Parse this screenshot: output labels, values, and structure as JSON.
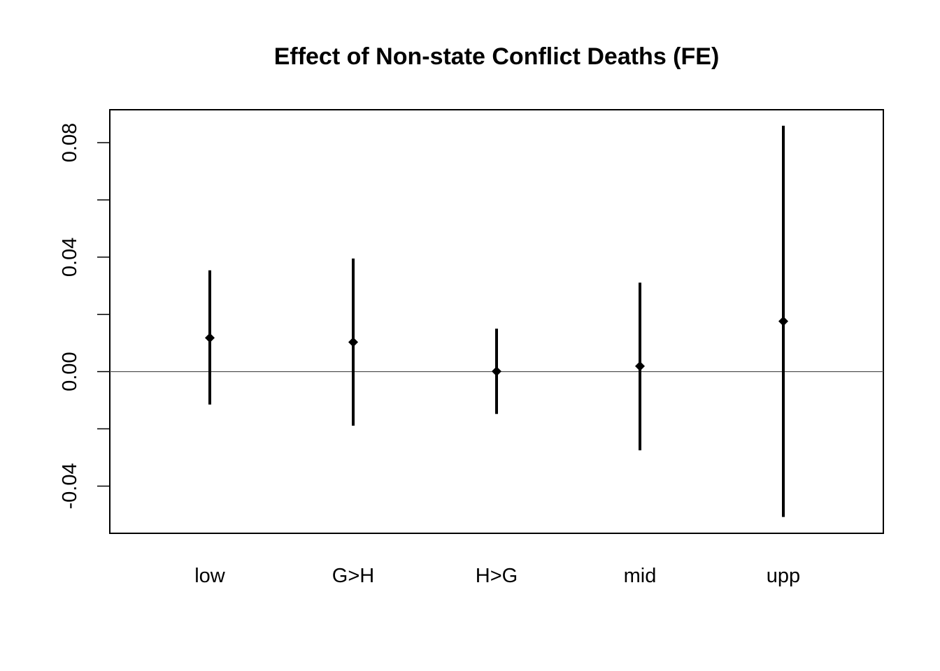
{
  "chart_data": {
    "type": "scatter",
    "title": "Effect of Non-state Conflict Deaths (FE)",
    "xlabel": "",
    "ylabel": "",
    "categories": [
      "low",
      "G>H",
      "H>G",
      "mid",
      "upp"
    ],
    "series": [
      {
        "estimates": [
          0.0118,
          0.0103,
          0.0001,
          0.0019,
          0.0176
        ],
        "lower": [
          -0.0115,
          -0.0189,
          -0.0148,
          -0.0275,
          -0.0508
        ],
        "upper": [
          0.0354,
          0.0395,
          0.015,
          0.0311,
          0.0859
        ]
      }
    ],
    "yticks": [
      -0.04,
      0.0,
      0.04,
      0.08
    ],
    "ytick_labels": [
      "-0.04",
      "0.00",
      "0.04",
      "0.08"
    ],
    "ylim": [
      -0.0565,
      0.0915
    ],
    "reference_line": 0,
    "grid": false,
    "legend": "none",
    "marker": "diamond",
    "color": "#000000"
  }
}
